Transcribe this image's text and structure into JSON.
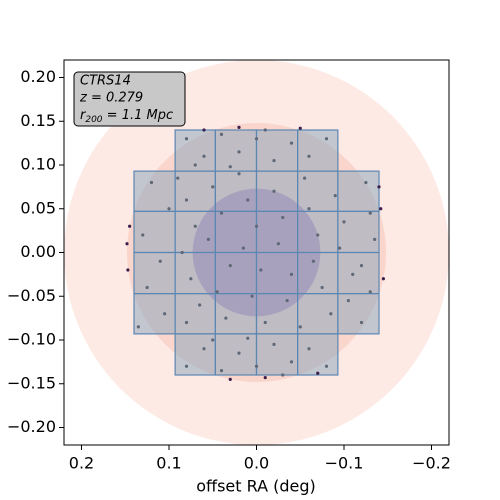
{
  "chart_data": {
    "type": "scatter",
    "xlabel": "offset RA (deg)",
    "xlim": [
      0.22,
      -0.22
    ],
    "ylim": [
      -0.22,
      0.22
    ],
    "xticks": [
      {
        "value": 0.2,
        "label": "0.2"
      },
      {
        "value": 0.1,
        "label": "0.1"
      },
      {
        "value": 0,
        "label": "0.0"
      },
      {
        "value": -0.1,
        "label": "−0.1"
      },
      {
        "value": -0.2,
        "label": "−0.2"
      }
    ],
    "yticks": [
      {
        "value": 0.2,
        "label": "0.20"
      },
      {
        "value": 0.15,
        "label": "0.15"
      },
      {
        "value": 0.1,
        "label": "0.10"
      },
      {
        "value": 0.05,
        "label": "0.05"
      },
      {
        "value": 0,
        "label": "0.00"
      },
      {
        "value": -0.05,
        "label": "−0.05"
      },
      {
        "value": -0.1,
        "label": "−0.10"
      },
      {
        "value": -0.15,
        "label": "−0.15"
      },
      {
        "value": -0.2,
        "label": "−0.20"
      }
    ],
    "annotation": {
      "name": "CTRS14",
      "redshift": "z = 0.279",
      "radius_symbol": "r",
      "radius_sub": "200",
      "radius_text": " = 1.1 Mpc"
    },
    "circles": [
      {
        "radius": 0.22,
        "color": "#fbd9d0"
      },
      {
        "radius": 0.148,
        "color": "#f7c2b8"
      },
      {
        "radius": 0.073,
        "color": "#9a6ab5"
      }
    ],
    "tile_color": "#8fa8bd",
    "tile_edge_color": "#5b87b2",
    "tiles": [
      [
        0.093,
        0.047,
        0.14,
        0.093
      ],
      [
        0.047,
        0,
        0.14,
        0.093
      ],
      [
        0,
        -0.047,
        0.14,
        0.093
      ],
      [
        -0.047,
        -0.093,
        0.14,
        0.093
      ],
      [
        0.14,
        0.093,
        0.093,
        0.047
      ],
      [
        0.093,
        0.047,
        0.093,
        0.047
      ],
      [
        0.047,
        0,
        0.093,
        0.047
      ],
      [
        0,
        -0.047,
        0.093,
        0.047
      ],
      [
        -0.047,
        -0.093,
        0.093,
        0.047
      ],
      [
        -0.093,
        -0.14,
        0.093,
        0.047
      ],
      [
        0.14,
        0.093,
        0.047,
        0
      ],
      [
        0.093,
        0.047,
        0.047,
        0
      ],
      [
        0.047,
        0,
        0.047,
        0
      ],
      [
        0,
        -0.047,
        0.047,
        0
      ],
      [
        -0.047,
        -0.093,
        0.047,
        0
      ],
      [
        -0.093,
        -0.14,
        0.047,
        0
      ],
      [
        0.14,
        0.093,
        0,
        -0.047
      ],
      [
        0.093,
        0.047,
        0,
        -0.047
      ],
      [
        0.047,
        0,
        0,
        -0.047
      ],
      [
        0,
        -0.047,
        0,
        -0.047
      ],
      [
        -0.047,
        -0.093,
        0,
        -0.047
      ],
      [
        -0.093,
        -0.14,
        0,
        -0.047
      ],
      [
        0.14,
        0.093,
        -0.047,
        -0.093
      ],
      [
        0.093,
        0.047,
        -0.047,
        -0.093
      ],
      [
        0.047,
        0,
        -0.047,
        -0.093
      ],
      [
        0,
        -0.047,
        -0.047,
        -0.093
      ],
      [
        -0.047,
        -0.093,
        -0.047,
        -0.093
      ],
      [
        -0.093,
        -0.14,
        -0.047,
        -0.093
      ],
      [
        0.093,
        0.047,
        -0.093,
        -0.14
      ],
      [
        0.047,
        0,
        -0.093,
        -0.14
      ],
      [
        0,
        -0.047,
        -0.093,
        -0.14
      ],
      [
        -0.047,
        -0.093,
        -0.093,
        -0.14
      ]
    ],
    "points": [
      {
        "color": "#5e6877",
        "x": [
          0.12,
          0.1,
          0.13,
          0.11,
          0.125,
          0.105,
          0.135,
          0.09,
          0.08,
          0.07,
          0.085,
          0.075,
          0.065,
          0.08,
          0.05,
          0.04,
          0.055,
          0.03,
          0.045,
          0.035,
          0.02,
          0.01,
          0.0,
          0.015,
          -0.005,
          0.005,
          -0.01,
          -0.02,
          -0.03,
          -0.025,
          -0.04,
          -0.035,
          -0.05,
          -0.055,
          -0.06,
          -0.07,
          -0.065,
          -0.075,
          -0.085,
          -0.09,
          -0.1,
          -0.095,
          -0.11,
          -0.105,
          -0.12,
          -0.125,
          -0.13,
          -0.135,
          -0.12,
          -0.13,
          0.08,
          0.06,
          0.04,
          0.02,
          0.0,
          -0.02,
          -0.04,
          -0.06,
          -0.08,
          0.07,
          -0.01,
          0.03,
          0.08,
          0.06,
          0.04,
          0.02,
          0.0,
          -0.02,
          -0.04,
          -0.06,
          -0.08,
          0.05,
          -0.03,
          0.01
        ],
        "y": [
          0.08,
          0.05,
          0.02,
          -0.01,
          -0.04,
          -0.07,
          -0.085,
          0.085,
          0.06,
          0.03,
          0.0,
          -0.03,
          -0.06,
          -0.08,
          0.075,
          0.045,
          0.015,
          -0.015,
          -0.045,
          -0.075,
          0.09,
          0.06,
          0.03,
          0.005,
          -0.02,
          -0.05,
          -0.08,
          0.07,
          0.04,
          0.01,
          -0.025,
          -0.055,
          -0.085,
          0.085,
          0.05,
          0.02,
          -0.01,
          -0.04,
          -0.07,
          0.065,
          0.035,
          0.005,
          -0.025,
          -0.055,
          -0.08,
          0.08,
          0.045,
          0.015,
          -0.015,
          -0.045,
          0.13,
          0.11,
          0.135,
          0.115,
          0.13,
          0.105,
          0.125,
          0.11,
          0.13,
          0.1,
          0.14,
          0.098,
          -0.13,
          -0.11,
          -0.135,
          -0.115,
          -0.13,
          -0.105,
          -0.125,
          -0.11,
          -0.13,
          -0.1,
          -0.14,
          -0.098
        ]
      },
      {
        "color": "#3d1f4e",
        "x": [
          0.148,
          0.147,
          0.145,
          -0.142,
          -0.145,
          -0.14,
          0.03,
          -0.01,
          0.02,
          -0.05,
          0.06,
          -0.07
        ],
        "y": [
          0.01,
          -0.02,
          0.03,
          0.05,
          -0.03,
          0.075,
          -0.145,
          -0.143,
          0.143,
          0.142,
          0.14,
          -0.138
        ]
      }
    ]
  }
}
